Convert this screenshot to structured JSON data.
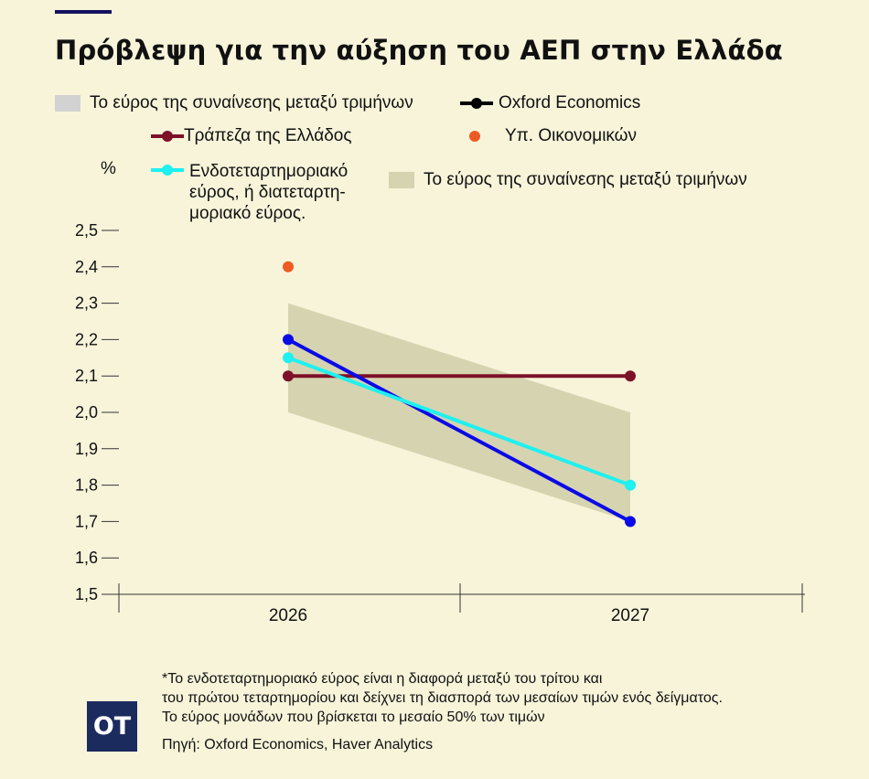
{
  "title": "Πρόβλεψη για την αύξηση του ΑΕΠ στην Ελλάδα",
  "legend": {
    "range_grey": "Το εύρος της συναίνεσης μεταξύ τριμήνων",
    "oxford": "Oxford Economics",
    "bank": "Τράπεζα της Ελλάδος",
    "ministry": "Υπ. Οικονομικών",
    "iqr": "Ενδοτεταρτημοριακό εύρος, ή διατεταρτη-μοριακό εύρος.",
    "range_olive": "Το εύρος της συναίνεσης μεταξύ τριμήνων"
  },
  "footnote": {
    "line1": "*Το ενδοτεταρτημοριακό εύρος είναι η διαφορά μεταξύ του τρίτου και",
    "line2": "του πρώτου τεταρτημορίου και δείχνει τη διασπορά των μεσαίων τιμών ενός δείγματος.",
    "line3": "Το εύρος μονάδων που βρίσκεται το μεσαίο 50% των τιμών",
    "source": "Πηγή: Oxford Economics, Haver Analytics"
  },
  "logo": "OT",
  "chart_data": {
    "type": "line",
    "ylabel": "%",
    "ylim": [
      1.5,
      2.5
    ],
    "yticks": [
      "2,5",
      "2,4",
      "2,3",
      "2,2",
      "2,1",
      "2,0",
      "1,9",
      "1,8",
      "1,7",
      "1,6",
      "1,5"
    ],
    "categories": [
      "2026",
      "2027"
    ],
    "band": {
      "name": "Το εύρος της συναίνεσης μεταξύ τριμήνων",
      "low": [
        2.0,
        1.7
      ],
      "high": [
        2.3,
        2.0
      ],
      "color": "#d6d4b0"
    },
    "series": [
      {
        "name": "Τράπεζα της Ελλάδος",
        "values": [
          2.1,
          2.1
        ],
        "color": "#7d1128"
      },
      {
        "name": "Oxford Economics",
        "values": [
          2.2,
          1.7
        ],
        "color": "#0a0ae6"
      },
      {
        "name": "Ενδοτεταρτημοριακό εύρος, ή διατεταρτη-μοριακό εύρος.",
        "values": [
          2.15,
          1.8
        ],
        "color": "#1ff0f0"
      },
      {
        "name": "Υπ. Οικονομικών",
        "values": [
          2.4,
          null
        ],
        "color": "#ee5a24",
        "markers_only": true
      }
    ],
    "grid": false,
    "legend_position": "top"
  }
}
